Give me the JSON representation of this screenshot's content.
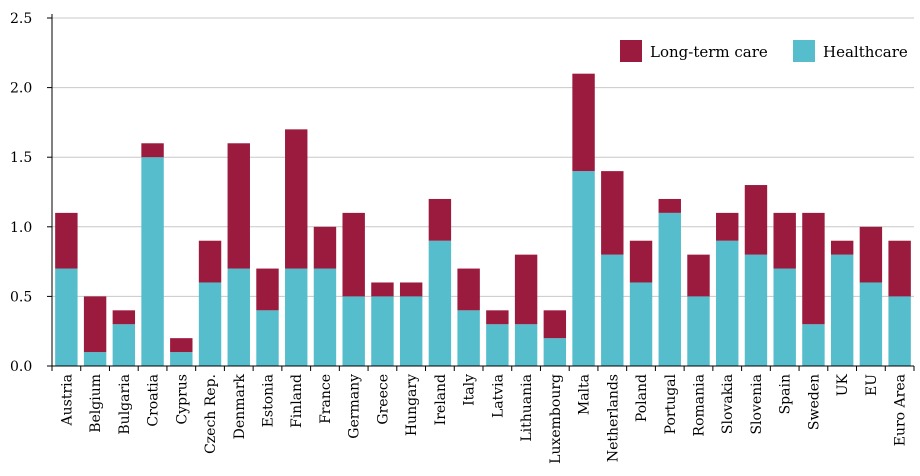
{
  "chart_data": {
    "type": "bar",
    "stacked": true,
    "categories": [
      "Austria",
      "Belgium",
      "Bulgaria",
      "Croatia",
      "Cyprus",
      "Czech Rep.",
      "Denmark",
      "Estonia",
      "Finland",
      "France",
      "Germany",
      "Greece",
      "Hungary",
      "Ireland",
      "Italy",
      "Latvia",
      "Lithuania",
      "Luxembourg",
      "Malta",
      "Netherlands",
      "Poland",
      "Portugal",
      "Romania",
      "Slovakia",
      "Slovenia",
      "Spain",
      "Sweden",
      "UK",
      "EU",
      "Euro Area"
    ],
    "series": [
      {
        "name": "Healthcare",
        "color": "#55BDCB",
        "values": [
          0.7,
          0.1,
          0.3,
          1.5,
          0.1,
          0.6,
          0.7,
          0.4,
          0.7,
          0.7,
          0.5,
          0.5,
          0.5,
          0.9,
          0.4,
          0.3,
          0.3,
          0.2,
          1.4,
          0.8,
          0.6,
          1.1,
          0.5,
          0.9,
          0.8,
          0.7,
          0.3,
          0.8,
          0.6,
          0.5
        ]
      },
      {
        "name": "Long-term care",
        "color": "#9B1B3E",
        "values": [
          0.4,
          0.4,
          0.1,
          0.1,
          0.1,
          0.3,
          0.9,
          0.3,
          1.0,
          0.3,
          0.6,
          0.1,
          0.1,
          0.3,
          0.3,
          0.1,
          0.5,
          0.2,
          0.7,
          0.6,
          0.3,
          0.1,
          0.3,
          0.2,
          0.5,
          0.4,
          0.8,
          0.1,
          0.4,
          0.4
        ]
      }
    ],
    "yticks": [
      "0.0",
      "0.5",
      "1.0",
      "1.5",
      "2.0",
      "2.5"
    ],
    "ylim": [
      0,
      2.5
    ],
    "grid": true,
    "legend_position": "top-right",
    "legend_order": [
      "Long-term care",
      "Healthcare"
    ]
  }
}
